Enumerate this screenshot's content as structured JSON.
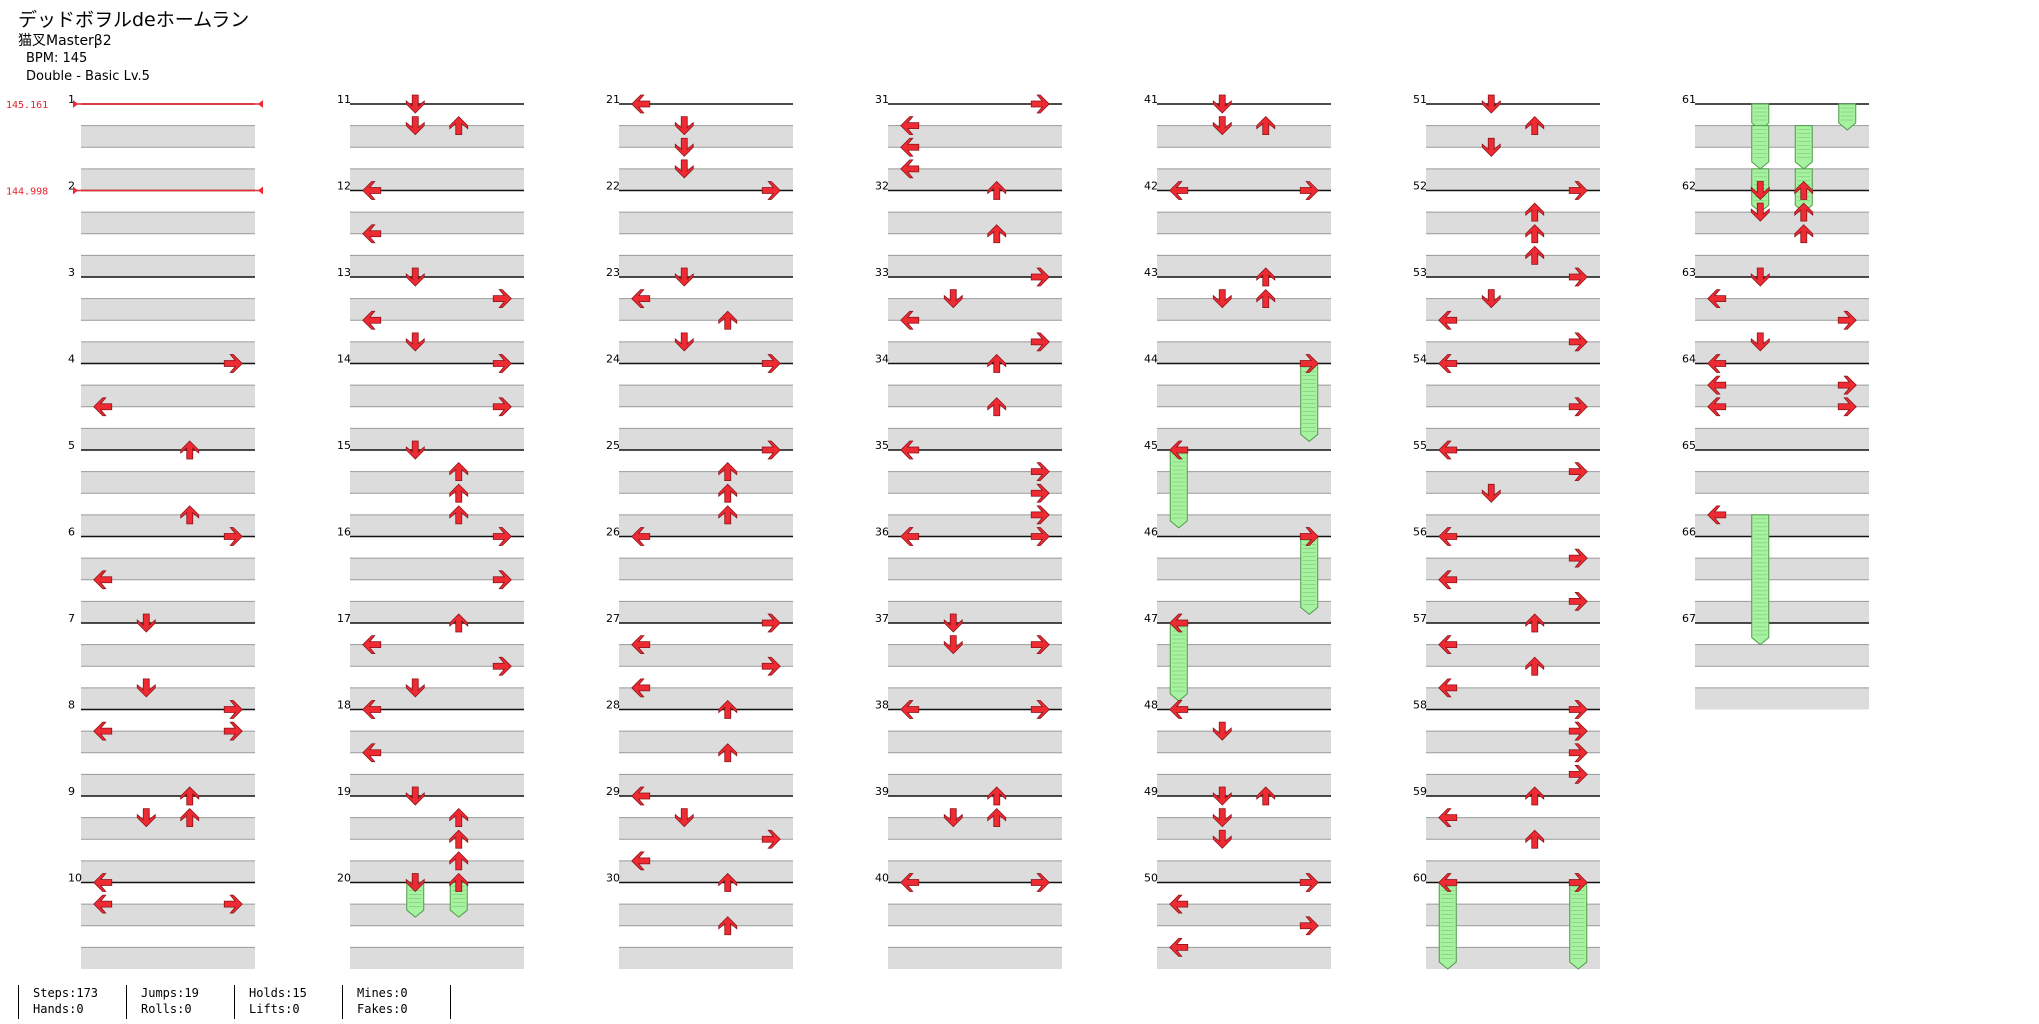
{
  "song": {
    "title": "デッドボヲルdeホームラン",
    "artist": "猫叉Masterβ2",
    "bpm_label": "BPM: 145",
    "difficulty": "Double - Basic Lv.5"
  },
  "bpm_changes": [
    {
      "measure": 1,
      "value": "145.161"
    },
    {
      "measure": 2,
      "value": "144.998"
    }
  ],
  "stats": {
    "steps": "Steps:173",
    "hands": "Hands:0",
    "jumps": "Jumps:19",
    "rolls": "Rolls:0",
    "holds": "Holds:15",
    "lifts": "Lifts:0",
    "mines": "Mines:0",
    "fakes": "Fakes:0"
  },
  "colors": {
    "tap": "#ee2a33",
    "tap_border": "#8a1318",
    "hold_fill": "#a6f2a0",
    "hold_border": "#4d9a47",
    "band": "#dcdcdc"
  },
  "chart_data": {
    "type": "stepchart",
    "measures": 67,
    "lanes": [
      "L",
      "D",
      "U",
      "R",
      "L",
      "D",
      "U",
      "R"
    ],
    "notes": [
      [
        4,
        0,
        "R"
      ],
      [
        4,
        2,
        "L"
      ],
      [
        5,
        0,
        "U"
      ],
      [
        5,
        3,
        "U"
      ],
      [
        6,
        0,
        "R"
      ],
      [
        6,
        2,
        "L"
      ],
      [
        7,
        0,
        "D"
      ],
      [
        7,
        3,
        "D"
      ],
      [
        8,
        0,
        "R"
      ],
      [
        8,
        1,
        "R"
      ],
      [
        8,
        1,
        "L"
      ],
      [
        9,
        0,
        "U"
      ],
      [
        9,
        1,
        "D"
      ],
      [
        9,
        1,
        "U"
      ],
      [
        10,
        0,
        "L"
      ],
      [
        10,
        1,
        "R"
      ],
      [
        10,
        1,
        "L"
      ],
      [
        11,
        0,
        "D"
      ],
      [
        11,
        1,
        "D"
      ],
      [
        11,
        1,
        "U"
      ],
      [
        12,
        0,
        "L"
      ],
      [
        12,
        2,
        "L"
      ],
      [
        13,
        0,
        "D"
      ],
      [
        13,
        1,
        "R"
      ],
      [
        13,
        2,
        "L"
      ],
      [
        13,
        3,
        "D"
      ],
      [
        14,
        0,
        "R"
      ],
      [
        14,
        2,
        "R"
      ],
      [
        15,
        0,
        "D"
      ],
      [
        15,
        1,
        "U"
      ],
      [
        15,
        2,
        "U"
      ],
      [
        15,
        3,
        "U"
      ],
      [
        16,
        0,
        "R"
      ],
      [
        16,
        2,
        "R"
      ],
      [
        17,
        0,
        "U"
      ],
      [
        17,
        1,
        "L"
      ],
      [
        17,
        2,
        "R"
      ],
      [
        17,
        3,
        "D"
      ],
      [
        18,
        0,
        "L"
      ],
      [
        18,
        2,
        "L"
      ],
      [
        19,
        0,
        "D"
      ],
      [
        19,
        1,
        "U"
      ],
      [
        19,
        2,
        "U"
      ],
      [
        19,
        3,
        "U"
      ],
      [
        20,
        0,
        "D"
      ],
      [
        20,
        0,
        "U"
      ],
      [
        21,
        0,
        "L"
      ],
      [
        21,
        1,
        "D"
      ],
      [
        21,
        2,
        "D"
      ],
      [
        21,
        3,
        "D"
      ],
      [
        22,
        0,
        "R"
      ],
      [
        23,
        0,
        "D"
      ],
      [
        23,
        1,
        "L"
      ],
      [
        23,
        2,
        "U"
      ],
      [
        23,
        3,
        "D"
      ],
      [
        24,
        0,
        "R"
      ],
      [
        25,
        0,
        "R"
      ],
      [
        25,
        1,
        "U"
      ],
      [
        25,
        2,
        "U"
      ],
      [
        25,
        3,
        "U"
      ],
      [
        26,
        0,
        "L"
      ],
      [
        27,
        0,
        "R"
      ],
      [
        27,
        1,
        "L"
      ],
      [
        27,
        2,
        "R"
      ],
      [
        27,
        3,
        "L"
      ],
      [
        28,
        0,
        "U"
      ],
      [
        28,
        2,
        "U"
      ],
      [
        29,
        0,
        "L"
      ],
      [
        29,
        1,
        "D"
      ],
      [
        29,
        2,
        "R"
      ],
      [
        29,
        3,
        "L"
      ],
      [
        30,
        0,
        "U"
      ],
      [
        30,
        2,
        "U"
      ],
      [
        31,
        0,
        "R"
      ],
      [
        31,
        1,
        "L"
      ],
      [
        31,
        2,
        "L"
      ],
      [
        31,
        3,
        "L"
      ],
      [
        32,
        0,
        "U"
      ],
      [
        32,
        2,
        "U"
      ],
      [
        33,
        0,
        "R"
      ],
      [
        33,
        1,
        "D"
      ],
      [
        33,
        2,
        "L"
      ],
      [
        33,
        3,
        "R"
      ],
      [
        34,
        0,
        "U"
      ],
      [
        34,
        2,
        "U"
      ],
      [
        35,
        0,
        "L"
      ],
      [
        35,
        1,
        "R"
      ],
      [
        35,
        2,
        "R"
      ],
      [
        35,
        3,
        "R"
      ],
      [
        36,
        0,
        "R"
      ],
      [
        36,
        0,
        "L"
      ],
      [
        37,
        0,
        "D"
      ],
      [
        37,
        1,
        "D"
      ],
      [
        37,
        1,
        "R"
      ],
      [
        38,
        0,
        "L"
      ],
      [
        38,
        0,
        "R"
      ],
      [
        39,
        0,
        "U"
      ],
      [
        39,
        1,
        "D"
      ],
      [
        39,
        1,
        "U"
      ],
      [
        40,
        0,
        "R"
      ],
      [
        40,
        0,
        "L"
      ],
      [
        41,
        0,
        "D"
      ],
      [
        41,
        1,
        "D"
      ],
      [
        41,
        1,
        "U"
      ],
      [
        42,
        0,
        "L"
      ],
      [
        42,
        0,
        "R"
      ],
      [
        43,
        0,
        "U"
      ],
      [
        43,
        1,
        "D"
      ],
      [
        43,
        1,
        "U"
      ],
      [
        44,
        0,
        "R"
      ],
      [
        45,
        0,
        "L"
      ],
      [
        46,
        0,
        "R"
      ],
      [
        47,
        0,
        "L"
      ],
      [
        48,
        0,
        "L"
      ],
      [
        48,
        1,
        "D"
      ],
      [
        49,
        0,
        "D"
      ],
      [
        49,
        0,
        "U"
      ],
      [
        49,
        1,
        "D"
      ],
      [
        49,
        2,
        "D"
      ],
      [
        50,
        0,
        "R"
      ],
      [
        50,
        1,
        "L"
      ],
      [
        50,
        2,
        "R"
      ],
      [
        50,
        3,
        "L"
      ],
      [
        51,
        0,
        "D"
      ],
      [
        51,
        1,
        "U"
      ],
      [
        51,
        2,
        "D"
      ],
      [
        52,
        0,
        "R"
      ],
      [
        52,
        1,
        "U"
      ],
      [
        52,
        2,
        "U"
      ],
      [
        52,
        3,
        "U"
      ],
      [
        53,
        0,
        "R"
      ],
      [
        53,
        1,
        "D"
      ],
      [
        53,
        2,
        "L"
      ],
      [
        53,
        3,
        "R"
      ],
      [
        54,
        0,
        "L"
      ],
      [
        54,
        2,
        "R"
      ],
      [
        55,
        0,
        "L"
      ],
      [
        55,
        1,
        "R"
      ],
      [
        55,
        2,
        "D"
      ],
      [
        56,
        0,
        "L"
      ],
      [
        56,
        1,
        "R"
      ],
      [
        56,
        2,
        "L"
      ],
      [
        56,
        3,
        "R"
      ],
      [
        57,
        0,
        "U"
      ],
      [
        57,
        1,
        "L"
      ],
      [
        57,
        2,
        "U"
      ],
      [
        57,
        3,
        "L"
      ],
      [
        58,
        0,
        "R"
      ],
      [
        58,
        1,
        "R"
      ],
      [
        58,
        2,
        "R"
      ],
      [
        58,
        3,
        "R"
      ],
      [
        59,
        0,
        "U"
      ],
      [
        59,
        1,
        "L"
      ],
      [
        59,
        2,
        "U"
      ],
      [
        60,
        0,
        "L"
      ],
      [
        60,
        0,
        "R"
      ],
      [
        62,
        0,
        "D"
      ],
      [
        62,
        0,
        "U"
      ],
      [
        62,
        1,
        "D"
      ],
      [
        62,
        1,
        "U"
      ],
      [
        62,
        2,
        "U"
      ],
      [
        63,
        0,
        "D"
      ],
      [
        63,
        1,
        "L"
      ],
      [
        63,
        2,
        "R"
      ],
      [
        63,
        3,
        "D"
      ],
      [
        64,
        0,
        "L"
      ],
      [
        64,
        1,
        "R"
      ],
      [
        64,
        1,
        "L"
      ],
      [
        64,
        2,
        "R"
      ],
      [
        64,
        2,
        "L"
      ],
      [
        65,
        3,
        "L"
      ]
    ],
    "holds": [
      [
        20,
        0,
        "D",
        0.4
      ],
      [
        20,
        0,
        "U",
        0.4
      ],
      [
        44,
        0,
        "R",
        0.9
      ],
      [
        45,
        0,
        "L",
        0.9
      ],
      [
        46,
        0,
        "R",
        0.9
      ],
      [
        47,
        0,
        "L",
        0.9
      ],
      [
        60,
        0,
        "L",
        1.0
      ],
      [
        60,
        0,
        "R",
        1.0
      ],
      [
        61,
        0,
        "D",
        0.3
      ],
      [
        61,
        0,
        "R",
        0.3
      ],
      [
        61,
        1,
        "D",
        0.5
      ],
      [
        61,
        1,
        "U",
        0.5
      ],
      [
        61,
        3,
        "D",
        0.5
      ],
      [
        61,
        3,
        "U",
        0.5
      ],
      [
        65,
        3,
        "D",
        1.5
      ]
    ],
    "beat_lane_map": {
      "L": 0,
      "D": 1,
      "U": 2,
      "R": 3
    }
  }
}
